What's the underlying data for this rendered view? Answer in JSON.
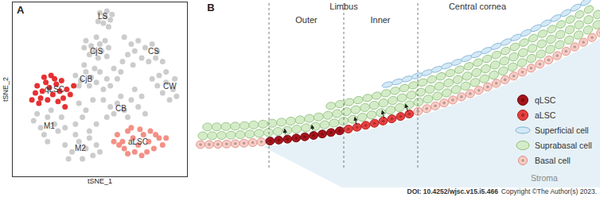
{
  "panel_labels": [
    "A",
    "B"
  ],
  "chart_data": {
    "type": "scatter",
    "xlabel": "tSNE_1",
    "ylabel": "tSNE_2",
    "xlim": [
      0,
      100
    ],
    "ylim": [
      0,
      100
    ],
    "xticks": [],
    "yticks": [],
    "tick_labels": false,
    "grid": false,
    "marker": "circle",
    "series": [
      {
        "color": "#c6c6c6",
        "x": [
          50,
          53,
          56,
          52,
          55,
          49,
          57,
          54,
          42,
          45,
          48,
          50,
          53,
          47,
          44,
          51,
          55,
          41,
          49,
          54,
          64,
          68,
          72,
          76,
          80,
          83,
          70,
          66,
          74,
          78,
          82,
          86,
          63,
          69,
          36,
          39,
          42,
          45,
          38,
          44,
          47,
          41,
          50,
          54,
          58,
          56,
          52,
          60,
          62,
          48,
          84,
          88,
          92,
          86,
          90,
          94,
          88,
          83,
          80,
          93,
          52,
          56,
          60,
          64,
          68,
          72,
          66,
          58,
          62,
          74,
          70,
          76,
          54,
          38,
          42,
          46,
          40,
          48,
          44,
          36,
          12,
          16,
          20,
          24,
          18,
          26,
          14,
          22,
          28,
          30,
          20,
          30,
          34,
          38,
          42,
          46,
          40,
          36,
          44,
          48,
          32,
          50
        ],
        "y": [
          94,
          92,
          90,
          88,
          86,
          89,
          93,
          95,
          78,
          75,
          80,
          76,
          78,
          72,
          70,
          72,
          74,
          74,
          68,
          69,
          80,
          76,
          78,
          74,
          76,
          72,
          72,
          70,
          68,
          66,
          68,
          66,
          66,
          64,
          58,
          55,
          60,
          57,
          52,
          52,
          62,
          64,
          60,
          56,
          62,
          52,
          50,
          56,
          60,
          54,
          58,
          54,
          50,
          48,
          44,
          46,
          60,
          52,
          56,
          56,
          44,
          40,
          42,
          38,
          44,
          40,
          34,
          36,
          46,
          46,
          50,
          36,
          34,
          42,
          38,
          44,
          34,
          30,
          26,
          30,
          32,
          28,
          34,
          30,
          24,
          26,
          36,
          38,
          34,
          28,
          20,
          18,
          14,
          20,
          16,
          12,
          10,
          24,
          22,
          18,
          10,
          14
        ]
      },
      {
        "color": "#e31a1c",
        "x": [
          14,
          17,
          19,
          21,
          23,
          16,
          25,
          27,
          29,
          20,
          24,
          13,
          31,
          22,
          18,
          28,
          26,
          30,
          33,
          15,
          35,
          11
        ],
        "y": [
          52,
          49,
          54,
          51,
          47,
          45,
          53,
          49,
          45,
          44,
          56,
          48,
          50,
          58,
          57,
          55,
          43,
          40,
          47,
          42,
          52,
          44
        ]
      },
      {
        "color": "#f28478",
        "x": [
          60,
          63,
          66,
          69,
          72,
          75,
          78,
          81,
          84,
          70,
          74,
          64,
          68,
          79,
          86,
          61,
          77,
          82,
          73,
          66,
          88,
          58
        ],
        "y": [
          24,
          20,
          26,
          22,
          18,
          24,
          20,
          16,
          22,
          14,
          12,
          16,
          28,
          26,
          18,
          18,
          14,
          24,
          27,
          13,
          22,
          20
        ]
      }
    ],
    "annotations": [
      {
        "text": "LS",
        "x": 52,
        "y": 92
      },
      {
        "text": "CjS",
        "x": 48,
        "y": 72
      },
      {
        "text": "CS",
        "x": 81,
        "y": 72
      },
      {
        "text": "CjB",
        "x": 42,
        "y": 56
      },
      {
        "text": "CW",
        "x": 90,
        "y": 52
      },
      {
        "text": "qLSC",
        "x": 24,
        "y": 50
      },
      {
        "text": "CB",
        "x": 62,
        "y": 39
      },
      {
        "text": "M1",
        "x": 21,
        "y": 29
      },
      {
        "text": "M2",
        "x": 39,
        "y": 16
      },
      {
        "text": "aLSC",
        "x": 72,
        "y": 20
      }
    ]
  },
  "diagram": {
    "headers": [
      "Limbus",
      "Central cornea"
    ],
    "zones": [
      "Outer",
      "Inner"
    ],
    "tissue_label": "Stroma",
    "legend": [
      {
        "label": "qLSC",
        "color": "#a8141b",
        "marker": "circle"
      },
      {
        "label": "aLSC",
        "color": "#e8403f",
        "marker": "circle"
      },
      {
        "label": "Superficial cell",
        "color": "#d3e9f6",
        "marker": "flat"
      },
      {
        "label": "Suprabasal cell",
        "color": "#d4ebc8",
        "marker": "oval"
      },
      {
        "label": "Basal cell",
        "color": "#f8cdc6",
        "marker": "round"
      }
    ]
  },
  "footer": {
    "doi": "DOI: 10.4252/wjsc.v15.i5.466",
    "copyright": "Copyright ©The Author(s) 2023."
  }
}
